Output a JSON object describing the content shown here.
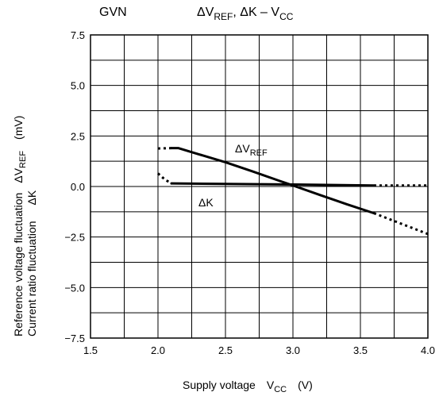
{
  "chart_data": {
    "type": "line",
    "title": {
      "prefix": "GVN",
      "main": "ΔV",
      "main_sub": "REF",
      "mid": ", ΔK – V",
      "mid_sub": "CC"
    },
    "xlabel": {
      "main": "Supply voltage",
      "var": "V",
      "var_sub": "CC",
      "unit": "(V)"
    },
    "ylabel": {
      "line1": "Reference voltage fluctuation",
      "line1_sym": "ΔV",
      "line1_sym_sub": "REF",
      "line1_unit": "(mV)",
      "line2": "Current ratio fluctuation",
      "line2_sym": "ΔK"
    },
    "xlim": [
      1.5,
      4.0
    ],
    "ylim": [
      -7.5,
      7.5
    ],
    "x_ticks": [
      "1.5",
      "2.0",
      "2.5",
      "3.0",
      "3.5",
      "4.0"
    ],
    "y_ticks": [
      "7.5",
      "5.0",
      "2.5",
      "0.0",
      "−2.5",
      "−5.0",
      "−7.5"
    ],
    "x_tick_values": [
      1.5,
      2.0,
      2.5,
      3.0,
      3.5,
      4.0
    ],
    "y_tick_values": [
      7.5,
      5.0,
      2.5,
      0.0,
      -2.5,
      -5.0,
      -7.5
    ],
    "x_grid_step": 0.25,
    "y_grid_step": 1.25,
    "grid": true,
    "series": [
      {
        "name": "ΔV",
        "name_sub": "REF",
        "dotted": {
          "x": [
            2.0,
            2.1
          ],
          "y": [
            1.88,
            1.9
          ]
        },
        "solid": {
          "x": [
            2.1,
            2.15,
            2.3,
            2.5,
            2.7,
            2.9,
            3.0,
            3.2,
            3.4,
            3.6
          ],
          "y": [
            1.9,
            1.9,
            1.6,
            1.2,
            0.75,
            0.28,
            0.05,
            -0.42,
            -0.88,
            -1.32
          ]
        },
        "dotted_end": {
          "x": [
            3.6,
            4.0
          ],
          "y": [
            -1.32,
            -2.35
          ]
        }
      },
      {
        "name": "ΔK",
        "name_sub": "",
        "dotted": {
          "x": [
            2.0,
            2.05,
            2.1
          ],
          "y": [
            0.65,
            0.35,
            0.15
          ]
        },
        "solid": {
          "x": [
            2.1,
            3.0,
            3.6
          ],
          "y": [
            0.15,
            0.1,
            0.05
          ]
        },
        "dotted_end": {
          "x": [
            3.6,
            4.0
          ],
          "y": [
            0.05,
            0.05
          ]
        }
      }
    ]
  }
}
